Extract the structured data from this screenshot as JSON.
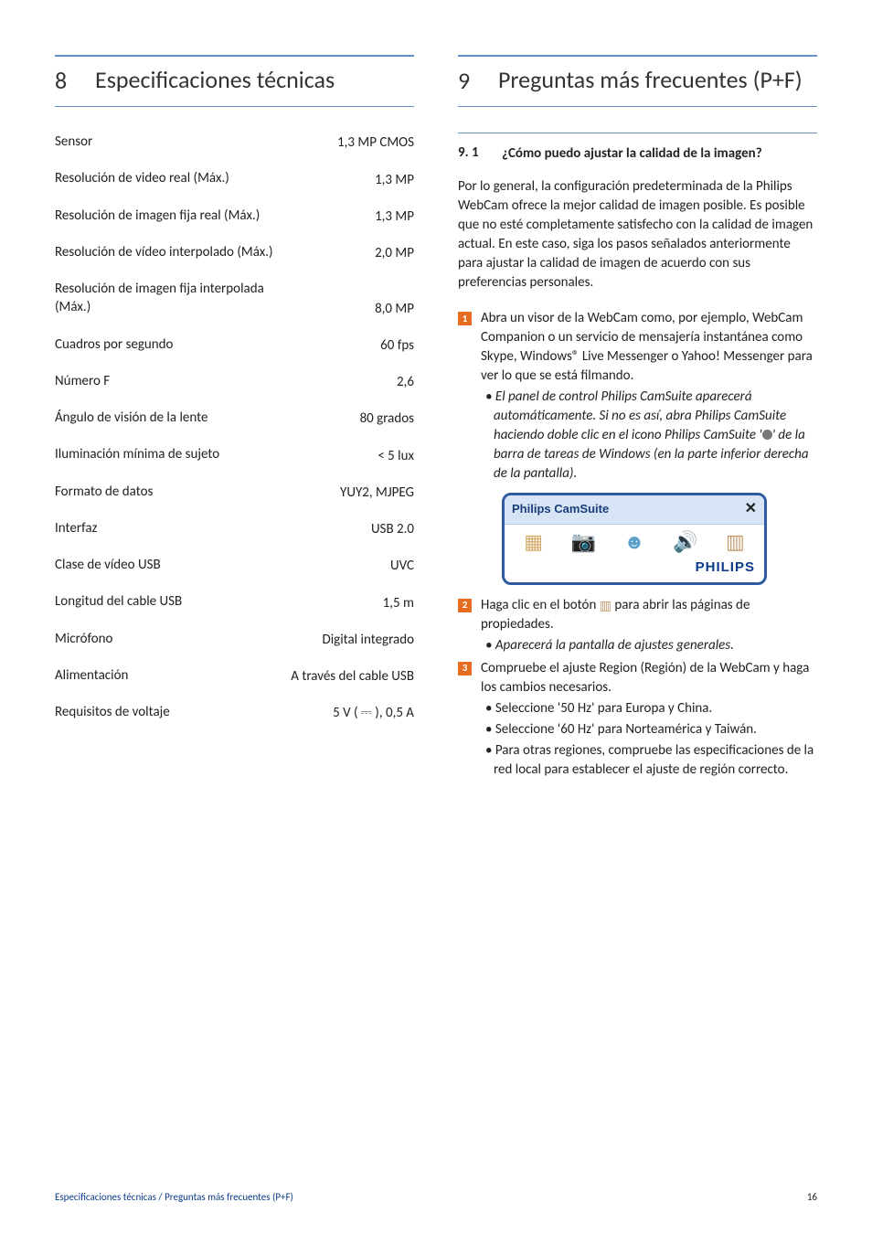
{
  "left": {
    "section_number": "8",
    "section_title": "Especificaciones técnicas",
    "specs": [
      {
        "label": "Sensor",
        "value": "1,3 MP CMOS"
      },
      {
        "label": "Resolución de video real (Máx.)",
        "value": "1,3 MP"
      },
      {
        "label": "Resolución de imagen fija real (Máx.)",
        "value": "1,3 MP"
      },
      {
        "label": "Resolución de vídeo interpolado (Máx.)",
        "value": "2,0 MP"
      },
      {
        "label": "Resolución de imagen fija interpolada (Máx.)",
        "value": "8,0 MP"
      },
      {
        "label": "Cuadros por segundo",
        "value": "60 fps"
      },
      {
        "label": "Número F",
        "value": "2,6"
      },
      {
        "label": "Ángulo de visión de la lente",
        "value": "80 grados"
      },
      {
        "label": "Iluminación mínima de sujeto",
        "value": "< 5 lux"
      },
      {
        "label": "Formato de datos",
        "value": "YUY2, MJPEG"
      },
      {
        "label": "Interfaz",
        "value": "USB 2.0"
      },
      {
        "label": "Clase de vídeo USB",
        "value": "UVC"
      },
      {
        "label": "Longitud del cable USB",
        "value": "1,5 m"
      },
      {
        "label": "Micrófono",
        "value": "Digital integrado"
      },
      {
        "label": "Alimentación",
        "value": "A través del cable USB"
      },
      {
        "label": "Requisitos de voltaje",
        "value": "5 V ( ⎓ ), 0,5 A"
      }
    ]
  },
  "right": {
    "section_number": "9",
    "section_title": "Preguntas más frecuentes (P+F)",
    "faq_number": "9. 1",
    "faq_question": "¿Cómo puedo ajustar la calidad de la imagen?",
    "intro": "Por lo general, la configuración predeterminada de la Philips WebCam ofrece la mejor calidad de imagen posible. Es posible que no esté completamente satisfecho con la calidad de imagen actual. En este caso, siga los pasos señalados anteriormente para ajustar la calidad de imagen de acuerdo con sus preferencias personales.",
    "step1_main": "Abra un visor de la WebCam como, por ejemplo, WebCam Companion o un servicio de mensajería instantánea como Skype, Windows® Live Messenger o Yahoo! Messenger para ver lo que se está filmando.",
    "step1_sub_pre": "El panel de control Philips CamSuite aparecerá automáticamente. Si no es así, abra Philips CamSuite haciendo doble clic en el icono Philips CamSuite '",
    "step1_sub_post": "' de la barra de tareas de Windows (en la parte inferior derecha de la pantalla).",
    "camsuite_title": "Philips CamSuite",
    "camsuite_brand": "PHILIPS",
    "brand_color": "#0b3b87",
    "step2_pre": "Haga clic en el botón ",
    "step2_post": " para abrir las páginas de propiedades.",
    "step2_sub": "Aparecerá la pantalla de ajustes generales.",
    "step3_main": "Compruebe el ajuste Region (Región) de la WebCam y haga los cambios necesarios.",
    "step3_b1": "Seleccione '50 Hz' para Europa y China.",
    "step3_b2": "Seleccione '60 Hz' para Norteamérica y Taiwán.",
    "step3_b3": "Para otras regiones, compruebe las especificaciones de la red local para establecer el ajuste de región correcto."
  },
  "footer": {
    "path": "Especificaciones técnicas / Preguntas más frecuentes (P+F)",
    "page": "16"
  },
  "colors": {
    "rule": "#648fc8",
    "step_box": "#e86c1f",
    "camsuite_border": "#2e5aa0",
    "camsuite_header_bg": "#d6e4f5"
  }
}
